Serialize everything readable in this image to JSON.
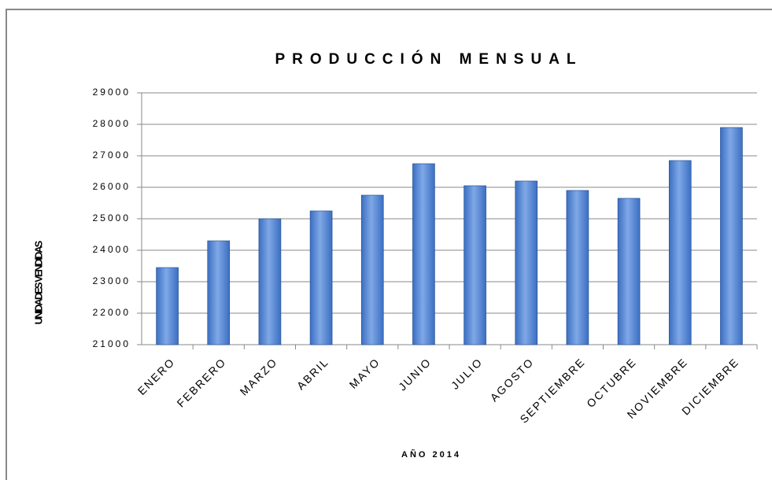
{
  "chart_data": {
    "type": "bar",
    "title": "PRODUCCIÓN MENSUAL",
    "x_label": "AÑO 2014",
    "y_label": "UNIDADES VENDIDAS",
    "categories": [
      "ENERO",
      "FEBRERO",
      "MARZO",
      "ABRIL",
      "MAYO",
      "JUNIO",
      "JULIO",
      "AGOSTO",
      "SEPTIEMBRE",
      "OCTUBRE",
      "NOVIEMBRE",
      "DICIEMBRE"
    ],
    "values": [
      23450,
      24300,
      25000,
      25250,
      25750,
      26750,
      26050,
      26200,
      25900,
      25650,
      26850,
      27900
    ],
    "color": "#3b6fc2",
    "ylim": [
      21000,
      29000
    ],
    "yticks": [
      21000,
      22000,
      23000,
      24000,
      25000,
      26000,
      27000,
      28000,
      29000
    ],
    "grid": true
  }
}
